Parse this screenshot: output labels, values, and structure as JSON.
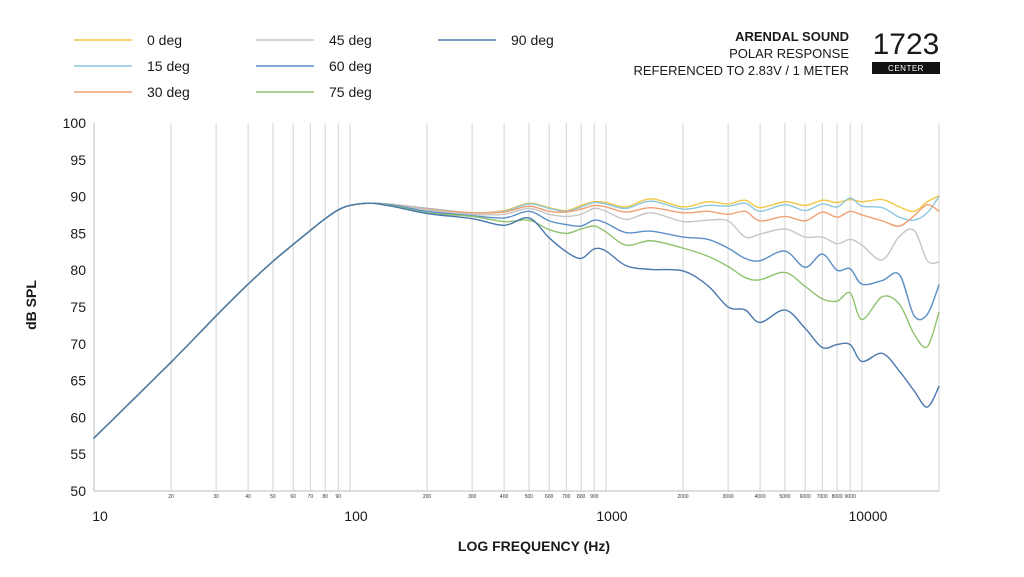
{
  "header": {
    "brand": "ARENDAL SOUND",
    "line1": "POLAR RESPONSE",
    "line2": "REFERENCED TO 2.83V / 1 METER",
    "model": "1723",
    "badge": "CENTER"
  },
  "chart_data": {
    "type": "line",
    "title": "",
    "xlabel": "LOG FREQUENCY (Hz)",
    "ylabel": "dB SPL",
    "xscale": "log",
    "xlim": [
      10,
      20000
    ],
    "ylim": [
      50,
      100
    ],
    "yticks": [
      50,
      55,
      60,
      65,
      70,
      75,
      80,
      85,
      90,
      95,
      100
    ],
    "xticks_major": [
      10,
      100,
      1000,
      10000
    ],
    "xticks_major_labels": [
      "10",
      "100",
      "1000",
      "10000"
    ],
    "xticks_minor": [
      20,
      30,
      40,
      50,
      60,
      70,
      80,
      90,
      200,
      300,
      400,
      500,
      600,
      700,
      800,
      900,
      2000,
      3000,
      4000,
      5000,
      6000,
      7000,
      8000,
      9000
    ],
    "xticks_minor_labels": [
      "20",
      "30",
      "40",
      "50",
      "60",
      "70",
      "80",
      "90",
      "200",
      "300",
      "400",
      "500",
      "600",
      "700",
      "800",
      "900",
      "2000",
      "3000",
      "4000",
      "5000",
      "6000",
      "7000",
      "8000",
      "9000"
    ],
    "grid": "vertical",
    "legend_position": "top-left",
    "series": [
      {
        "name": "0 deg",
        "color": "#f2c744",
        "points": [
          [
            10,
            57.2
          ],
          [
            20,
            67.5
          ],
          [
            30,
            73.8
          ],
          [
            40,
            78.1
          ],
          [
            50,
            81.2
          ],
          [
            60,
            83.5
          ],
          [
            70,
            85.4
          ],
          [
            80,
            87.0
          ],
          [
            90,
            88.2
          ],
          [
            100,
            88.8
          ],
          [
            120,
            89.1
          ],
          [
            150,
            88.9
          ],
          [
            200,
            88.4
          ],
          [
            300,
            87.8
          ],
          [
            400,
            88.1
          ],
          [
            500,
            89.1
          ],
          [
            600,
            88.5
          ],
          [
            700,
            88.1
          ],
          [
            800,
            88.8
          ],
          [
            900,
            89.3
          ],
          [
            1000,
            89.2
          ],
          [
            1200,
            88.6
          ],
          [
            1500,
            89.7
          ],
          [
            2000,
            88.6
          ],
          [
            2500,
            89.3
          ],
          [
            3000,
            89.0
          ],
          [
            3500,
            89.5
          ],
          [
            4000,
            88.5
          ],
          [
            5000,
            89.3
          ],
          [
            6000,
            88.8
          ],
          [
            7000,
            89.5
          ],
          [
            8000,
            89.2
          ],
          [
            9000,
            89.6
          ],
          [
            10000,
            89.3
          ],
          [
            12000,
            89.6
          ],
          [
            14000,
            88.6
          ],
          [
            16000,
            88.0
          ],
          [
            18000,
            89.3
          ],
          [
            20000,
            90.1
          ]
        ]
      },
      {
        "name": "15 deg",
        "color": "#8cc7dd",
        "points": [
          [
            10,
            57.2
          ],
          [
            20,
            67.5
          ],
          [
            30,
            73.8
          ],
          [
            40,
            78.1
          ],
          [
            50,
            81.2
          ],
          [
            60,
            83.5
          ],
          [
            70,
            85.4
          ],
          [
            80,
            87.0
          ],
          [
            90,
            88.2
          ],
          [
            100,
            88.8
          ],
          [
            120,
            89.1
          ],
          [
            150,
            88.9
          ],
          [
            200,
            88.4
          ],
          [
            300,
            87.8
          ],
          [
            400,
            88.0
          ],
          [
            500,
            89.0
          ],
          [
            600,
            88.4
          ],
          [
            700,
            88.0
          ],
          [
            800,
            88.6
          ],
          [
            900,
            89.2
          ],
          [
            1000,
            89.0
          ],
          [
            1200,
            88.4
          ],
          [
            1500,
            89.4
          ],
          [
            2000,
            88.3
          ],
          [
            2500,
            88.8
          ],
          [
            3000,
            88.7
          ],
          [
            3500,
            89.1
          ],
          [
            4000,
            88.0
          ],
          [
            5000,
            88.9
          ],
          [
            6000,
            88.1
          ],
          [
            7000,
            89.0
          ],
          [
            8000,
            88.6
          ],
          [
            9000,
            89.8
          ],
          [
            10000,
            88.7
          ],
          [
            12000,
            88.5
          ],
          [
            14000,
            87.2
          ],
          [
            16000,
            86.8
          ],
          [
            18000,
            87.8
          ],
          [
            20000,
            90.0
          ]
        ]
      },
      {
        "name": "30 deg",
        "color": "#f0a070",
        "points": [
          [
            10,
            57.2
          ],
          [
            20,
            67.5
          ],
          [
            30,
            73.8
          ],
          [
            40,
            78.1
          ],
          [
            50,
            81.2
          ],
          [
            60,
            83.5
          ],
          [
            70,
            85.4
          ],
          [
            80,
            87.0
          ],
          [
            90,
            88.2
          ],
          [
            100,
            88.8
          ],
          [
            120,
            89.1
          ],
          [
            150,
            88.9
          ],
          [
            200,
            88.3
          ],
          [
            300,
            87.8
          ],
          [
            400,
            87.9
          ],
          [
            500,
            88.7
          ],
          [
            600,
            88.0
          ],
          [
            700,
            87.9
          ],
          [
            800,
            88.3
          ],
          [
            900,
            88.8
          ],
          [
            1000,
            88.6
          ],
          [
            1200,
            87.9
          ],
          [
            1500,
            88.5
          ],
          [
            2000,
            87.8
          ],
          [
            2500,
            88.0
          ],
          [
            3000,
            87.6
          ],
          [
            3500,
            88.0
          ],
          [
            4000,
            86.7
          ],
          [
            5000,
            87.3
          ],
          [
            6000,
            86.7
          ],
          [
            7000,
            87.9
          ],
          [
            8000,
            87.2
          ],
          [
            9000,
            88.0
          ],
          [
            10000,
            87.5
          ],
          [
            12000,
            86.7
          ],
          [
            14000,
            86.0
          ],
          [
            16000,
            87.4
          ],
          [
            18000,
            88.9
          ],
          [
            20000,
            88.0
          ]
        ]
      },
      {
        "name": "45 deg",
        "color": "#c6c6c6",
        "points": [
          [
            10,
            57.2
          ],
          [
            20,
            67.5
          ],
          [
            30,
            73.8
          ],
          [
            40,
            78.1
          ],
          [
            50,
            81.2
          ],
          [
            60,
            83.5
          ],
          [
            70,
            85.4
          ],
          [
            80,
            87.0
          ],
          [
            90,
            88.2
          ],
          [
            100,
            88.8
          ],
          [
            120,
            89.1
          ],
          [
            150,
            88.9
          ],
          [
            200,
            88.2
          ],
          [
            300,
            87.6
          ],
          [
            400,
            87.6
          ],
          [
            500,
            88.4
          ],
          [
            600,
            87.6
          ],
          [
            700,
            87.3
          ],
          [
            800,
            87.6
          ],
          [
            900,
            88.4
          ],
          [
            1000,
            88.0
          ],
          [
            1200,
            86.9
          ],
          [
            1500,
            87.8
          ],
          [
            2000,
            86.6
          ],
          [
            2500,
            86.8
          ],
          [
            3000,
            86.7
          ],
          [
            3500,
            84.5
          ],
          [
            4000,
            84.9
          ],
          [
            5000,
            85.6
          ],
          [
            6000,
            84.5
          ],
          [
            7000,
            84.5
          ],
          [
            8000,
            83.6
          ],
          [
            9000,
            84.2
          ],
          [
            10000,
            83.4
          ],
          [
            12000,
            81.4
          ],
          [
            14000,
            84.6
          ],
          [
            16000,
            85.4
          ],
          [
            18000,
            81.3
          ],
          [
            20000,
            81.1
          ]
        ]
      },
      {
        "name": "60 deg",
        "color": "#5b8fc7",
        "points": [
          [
            10,
            57.2
          ],
          [
            20,
            67.5
          ],
          [
            30,
            73.8
          ],
          [
            40,
            78.1
          ],
          [
            50,
            81.2
          ],
          [
            60,
            83.5
          ],
          [
            70,
            85.4
          ],
          [
            80,
            87.0
          ],
          [
            90,
            88.2
          ],
          [
            100,
            88.8
          ],
          [
            120,
            89.1
          ],
          [
            150,
            88.8
          ],
          [
            200,
            88.0
          ],
          [
            300,
            87.4
          ],
          [
            400,
            87.1
          ],
          [
            500,
            88.0
          ],
          [
            600,
            86.7
          ],
          [
            700,
            86.2
          ],
          [
            800,
            86.0
          ],
          [
            900,
            86.8
          ],
          [
            1000,
            86.4
          ],
          [
            1200,
            85.1
          ],
          [
            1500,
            85.3
          ],
          [
            2000,
            84.5
          ],
          [
            2500,
            84.2
          ],
          [
            3000,
            83.0
          ],
          [
            3500,
            81.6
          ],
          [
            4000,
            81.3
          ],
          [
            5000,
            82.6
          ],
          [
            6000,
            80.4
          ],
          [
            7000,
            82.2
          ],
          [
            8000,
            80.0
          ],
          [
            9000,
            80.2
          ],
          [
            10000,
            78.1
          ],
          [
            12000,
            78.6
          ],
          [
            14000,
            79.4
          ],
          [
            16000,
            73.8
          ],
          [
            18000,
            74.0
          ],
          [
            20000,
            78.0
          ]
        ]
      },
      {
        "name": "75 deg",
        "color": "#90c270",
        "points": [
          [
            10,
            57.2
          ],
          [
            20,
            67.5
          ],
          [
            30,
            73.8
          ],
          [
            40,
            78.1
          ],
          [
            50,
            81.2
          ],
          [
            60,
            83.5
          ],
          [
            70,
            85.4
          ],
          [
            80,
            87.0
          ],
          [
            90,
            88.2
          ],
          [
            100,
            88.8
          ],
          [
            120,
            89.1
          ],
          [
            150,
            88.7
          ],
          [
            200,
            87.8
          ],
          [
            300,
            87.3
          ],
          [
            400,
            86.6
          ],
          [
            500,
            86.8
          ],
          [
            600,
            85.5
          ],
          [
            700,
            85.0
          ],
          [
            800,
            85.6
          ],
          [
            900,
            86.0
          ],
          [
            1000,
            85.2
          ],
          [
            1200,
            83.4
          ],
          [
            1500,
            84.0
          ],
          [
            2000,
            83.0
          ],
          [
            2500,
            81.9
          ],
          [
            3000,
            80.5
          ],
          [
            3500,
            79.0
          ],
          [
            4000,
            78.7
          ],
          [
            5000,
            79.7
          ],
          [
            6000,
            77.8
          ],
          [
            7000,
            76.1
          ],
          [
            8000,
            75.8
          ],
          [
            9000,
            76.9
          ],
          [
            10000,
            73.3
          ],
          [
            12000,
            76.4
          ],
          [
            14000,
            75.4
          ],
          [
            16000,
            71.3
          ],
          [
            18000,
            69.6
          ],
          [
            20000,
            74.3
          ]
        ]
      },
      {
        "name": "90 deg",
        "color": "#4a78ad",
        "points": [
          [
            10,
            57.2
          ],
          [
            20,
            67.5
          ],
          [
            30,
            73.8
          ],
          [
            40,
            78.1
          ],
          [
            50,
            81.2
          ],
          [
            60,
            83.5
          ],
          [
            70,
            85.4
          ],
          [
            80,
            87.0
          ],
          [
            90,
            88.2
          ],
          [
            100,
            88.8
          ],
          [
            120,
            89.1
          ],
          [
            150,
            88.6
          ],
          [
            200,
            87.7
          ],
          [
            300,
            87.0
          ],
          [
            400,
            86.1
          ],
          [
            500,
            87.1
          ],
          [
            600,
            84.4
          ],
          [
            700,
            82.5
          ],
          [
            800,
            81.6
          ],
          [
            900,
            82.9
          ],
          [
            1000,
            82.6
          ],
          [
            1200,
            80.6
          ],
          [
            1500,
            80.1
          ],
          [
            2000,
            79.9
          ],
          [
            2500,
            77.9
          ],
          [
            3000,
            75.0
          ],
          [
            3500,
            74.6
          ],
          [
            4000,
            72.9
          ],
          [
            5000,
            74.6
          ],
          [
            6000,
            72.1
          ],
          [
            7000,
            69.5
          ],
          [
            8000,
            69.9
          ],
          [
            9000,
            69.9
          ],
          [
            10000,
            67.6
          ],
          [
            12000,
            68.7
          ],
          [
            14000,
            66.3
          ],
          [
            16000,
            63.6
          ],
          [
            18000,
            61.4
          ],
          [
            20000,
            64.2
          ]
        ]
      }
    ]
  }
}
